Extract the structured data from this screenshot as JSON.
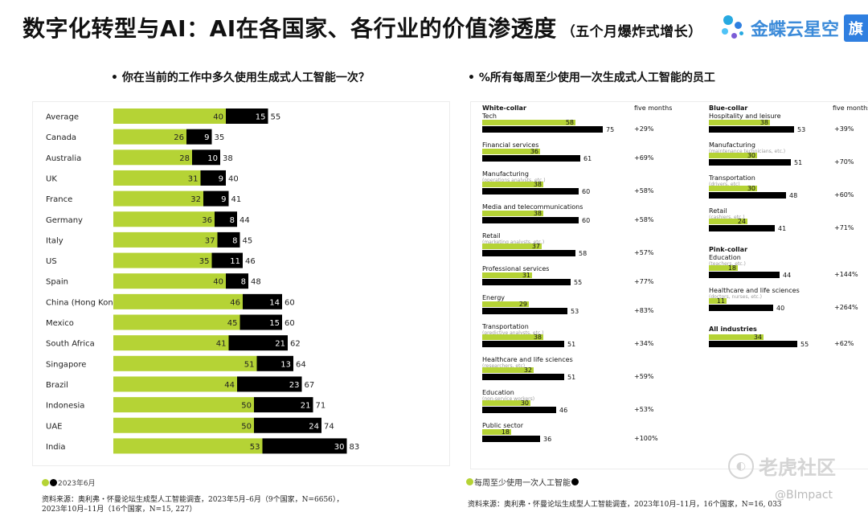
{
  "header": {
    "title": "数字化转型与AI：AI在各国家、各行业的价值渗透度",
    "subtitle": "（五个月爆炸式增长）",
    "logo_text": "金蝶云星空",
    "logo_badge": "旗"
  },
  "colors": {
    "green": "#b5d335",
    "black": "#000000"
  },
  "left_question": "•   你在当前的工作中多久使用生成式人工智能一次？",
  "right_question": "•   %所有每周至少使用一次生成式人工智能的员工",
  "left_legend": "2023年6月",
  "right_legend": "每周至少使用一次人工智能",
  "left_source": [
    "资料来源：奥利弗・怀曼论坛生成型人工智能调查，2023年5月–6月（9个国家，N=6656），",
    "2023年10月–11月（16个国家，N=15, 227）"
  ],
  "right_source": "资料来源：奥利弗・怀曼论坛生成型人工智能调查，2023年10月–11月，16个国家，N=16, 033",
  "watermark": "老虎社区",
  "watermark2": "@BImpact",
  "chart_data": [
    {
      "type": "bar",
      "stacked": true,
      "orientation": "horizontal",
      "categories": [
        "Average",
        "Canada",
        "Australia",
        "UK",
        "France",
        "Germany",
        "Italy",
        "US",
        "Spain",
        "China (Hong Kong)",
        "Mexico",
        "South Africa",
        "Singapore",
        "Brazil",
        "Indonesia",
        "UAE",
        "India"
      ],
      "series": [
        {
          "values": [
            40,
            26,
            28,
            31,
            32,
            36,
            37,
            35,
            40,
            46,
            45,
            41,
            51,
            44,
            50,
            50,
            53
          ]
        },
        {
          "values": [
            15,
            9,
            10,
            9,
            9,
            8,
            8,
            11,
            8,
            14,
            15,
            21,
            13,
            23,
            21,
            24,
            30
          ]
        }
      ],
      "totals": [
        55,
        35,
        38,
        40,
        41,
        44,
        45,
        46,
        48,
        60,
        60,
        62,
        64,
        67,
        71,
        74,
        83
      ]
    },
    {
      "type": "bar",
      "orientation": "horizontal",
      "column_header": "five months",
      "groups": [
        {
          "name": "White-collar",
          "items": [
            {
              "label": "Tech",
              "sub": "",
              "green": 58,
              "black": 75,
              "change": "+29%"
            },
            {
              "label": "Financial services",
              "sub": "",
              "green": 36,
              "black": 61,
              "change": "+69%"
            },
            {
              "label": "Manufacturing",
              "sub": "(operations analysts, etc.)",
              "green": 38,
              "black": 60,
              "change": "+58%"
            },
            {
              "label": "Media and telecommunications",
              "sub": "",
              "green": 38,
              "black": 60,
              "change": "+58%"
            },
            {
              "label": "Retail",
              "sub": "(marketing analysts, etc.)",
              "green": 37,
              "black": 58,
              "change": "+57%"
            },
            {
              "label": "Professional services",
              "sub": "",
              "green": 31,
              "black": 55,
              "change": "+77%"
            },
            {
              "label": "Energy",
              "sub": "",
              "green": 29,
              "black": 53,
              "change": "+83%"
            },
            {
              "label": "Transportation",
              "sub": "(predictive analysts, etc.)",
              "green": 38,
              "black": 51,
              "change": "+34%"
            },
            {
              "label": "Healthcare and life sciences",
              "sub": "(researchers, etc)",
              "green": 32,
              "black": 51,
              "change": "+59%"
            },
            {
              "label": "Education",
              "sub": "(non-service workers)",
              "green": 30,
              "black": 46,
              "change": "+53%"
            },
            {
              "label": "Public sector",
              "sub": "",
              "green": 18,
              "black": 36,
              "change": "+100%"
            }
          ]
        },
        {
          "name": "Blue-collar",
          "items": [
            {
              "label": "Hospitality and leisure",
              "sub": "",
              "green": 38,
              "black": 53,
              "change": "+39%"
            },
            {
              "label": "Manufacturing",
              "sub": "(maintenance technicians, etc.)",
              "green": 30,
              "black": 51,
              "change": "+70%"
            },
            {
              "label": "Transportation",
              "sub": "(drivers, etc)",
              "green": 30,
              "black": 48,
              "change": "+60%"
            },
            {
              "label": "Retail",
              "sub": "(cashiers, etc.)",
              "green": 24,
              "black": 41,
              "change": "+71%"
            }
          ]
        },
        {
          "name": "Pink-collar",
          "items": [
            {
              "label": "Education",
              "sub": "(teachers, etc.)",
              "green": 18,
              "black": 44,
              "change": "+144%"
            },
            {
              "label": "Healthcare and life sciences",
              "sub": "(doctors, nurses, etc.)",
              "green": 11,
              "black": 40,
              "change": "+264%"
            }
          ]
        },
        {
          "name": "All industries",
          "items": [
            {
              "label": "",
              "sub": "",
              "green": 34,
              "black": 55,
              "change": "+62%"
            }
          ]
        }
      ]
    }
  ]
}
